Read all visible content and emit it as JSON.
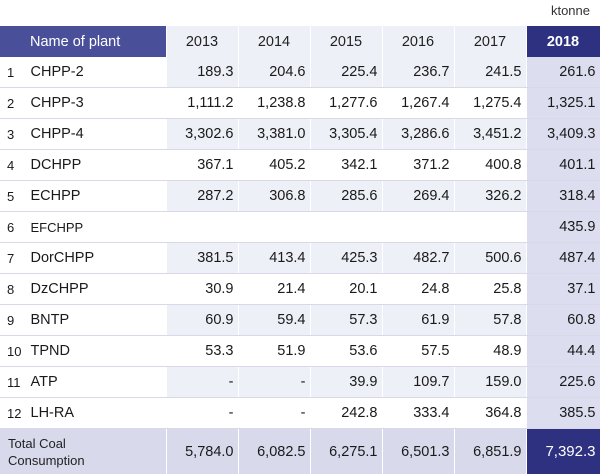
{
  "unit": "ktonne",
  "header": {
    "name_col": "Name of plant",
    "years": [
      "2013",
      "2014",
      "2015",
      "2016",
      "2017",
      "2018"
    ]
  },
  "rows": [
    {
      "num": "1",
      "name": "CHPP-2",
      "values": [
        "189.3",
        "204.6",
        "225.4",
        "236.7",
        "241.5",
        "261.6"
      ]
    },
    {
      "num": "2",
      "name": "CHPP-3",
      "values": [
        "1,111.2",
        "1,238.8",
        "1,277.6",
        "1,267.4",
        "1,275.4",
        "1,325.1"
      ]
    },
    {
      "num": "3",
      "name": "CHPP-4",
      "values": [
        "3,302.6",
        "3,381.0",
        "3,305.4",
        "3,286.6",
        "3,451.2",
        "3,409.3"
      ]
    },
    {
      "num": "4",
      "name": "DCHPP",
      "values": [
        "367.1",
        "405.2",
        "342.1",
        "371.2",
        "400.8",
        "401.1"
      ]
    },
    {
      "num": "5",
      "name": "ECHPP",
      "values": [
        "287.2",
        "306.8",
        "285.6",
        "269.4",
        "326.2",
        "318.4"
      ]
    },
    {
      "num": "6",
      "name": "EFCHPP",
      "values": [
        "",
        "",
        "",
        "",
        "",
        "435.9"
      ]
    },
    {
      "num": "7",
      "name": "DorCHPP",
      "values": [
        "381.5",
        "413.4",
        "425.3",
        "482.7",
        "500.6",
        "487.4"
      ]
    },
    {
      "num": "8",
      "name": "DzCHPP",
      "values": [
        "30.9",
        "21.4",
        "20.1",
        "24.8",
        "25.8",
        "37.1"
      ]
    },
    {
      "num": "9",
      "name": "BNTP",
      "values": [
        "60.9",
        "59.4",
        "57.3",
        "61.9",
        "57.8",
        "60.8"
      ]
    },
    {
      "num": "10",
      "name": "TPND",
      "values": [
        "53.3",
        "51.9",
        "53.6",
        "57.5",
        "48.9",
        "44.4"
      ]
    },
    {
      "num": "11",
      "name": "ATP",
      "values": [
        "-",
        "-",
        "39.9",
        "109.7",
        "159.0",
        "225.6"
      ]
    },
    {
      "num": "12",
      "name": "LH-RA",
      "values": [
        "-",
        "-",
        "242.8",
        "333.4",
        "364.8",
        "385.5"
      ]
    }
  ],
  "total": {
    "label_line1": "Total Coal",
    "label_line2": "Consumption",
    "values": [
      "5,784.0",
      "6,082.5",
      "6,275.1",
      "6,501.3",
      "6,851.9",
      "7,392.3"
    ]
  }
}
